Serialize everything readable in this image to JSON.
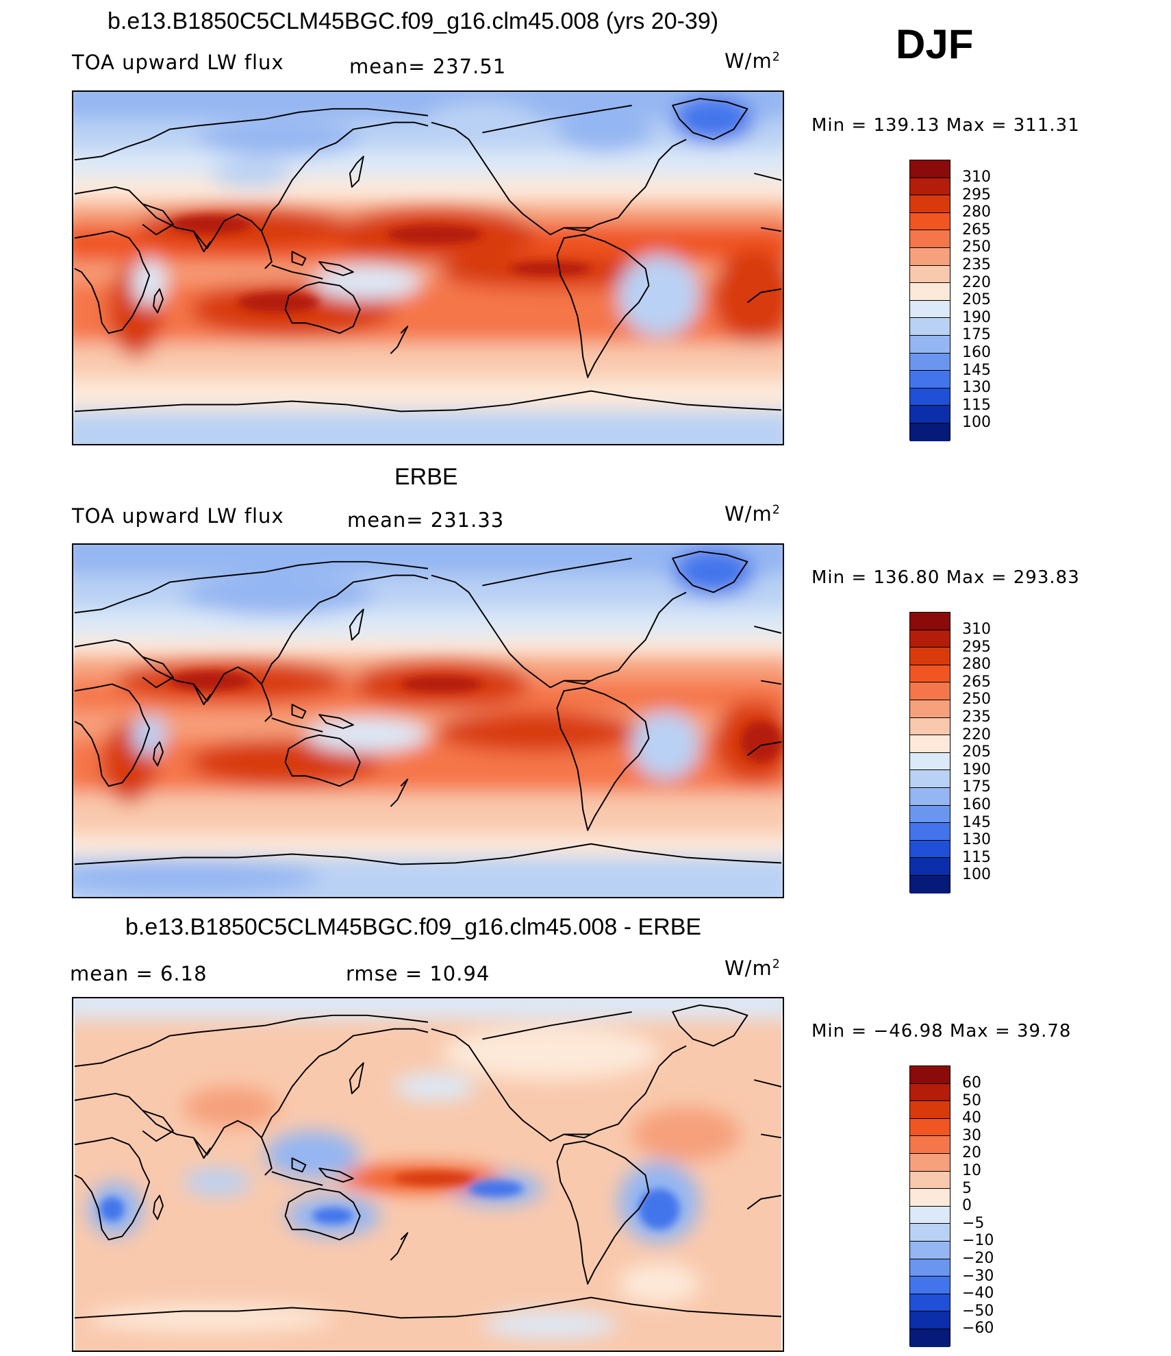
{
  "season": "DJF",
  "units": "W/m",
  "units_exp": "2",
  "panels": [
    {
      "title": "b.e13.B1850C5CLM45BGC.f09_g16.clm45.008 (yrs 20-39)",
      "left": "TOA upward LW flux",
      "center": "mean= 237.51",
      "minmax": "Min  =  139.13  Max  =  311.31",
      "scale": "flux"
    },
    {
      "title": "ERBE",
      "left": "TOA upward LW flux",
      "center": "mean= 231.33",
      "minmax": "Min  =  136.80  Max  =  293.83",
      "scale": "flux"
    },
    {
      "title": "b.e13.B1850C5CLM45BGC.f09_g16.clm45.008 - ERBE",
      "left": "mean =      6.18",
      "center": "rmse =     10.94",
      "minmax": "Min  =  −46.98  Max  =     39.78",
      "scale": "diff"
    }
  ],
  "colorbars": {
    "flux": {
      "labels": [
        "310",
        "295",
        "280",
        "265",
        "250",
        "235",
        "220",
        "205",
        "190",
        "175",
        "160",
        "145",
        "130",
        "115",
        "100"
      ],
      "colors": [
        "#8b0a0a",
        "#b41d0a",
        "#d83a0c",
        "#f05522",
        "#f5764a",
        "#f6a07c",
        "#f9c9ad",
        "#fde9d9",
        "#dce9f8",
        "#b9d1f4",
        "#94b6f2",
        "#6b96ef",
        "#4374ec",
        "#2050d8",
        "#0b2eaa",
        "#061a7a"
      ]
    },
    "diff": {
      "labels": [
        "60",
        "50",
        "40",
        "30",
        "20",
        "10",
        "5",
        "0",
        "−5",
        "−10",
        "−20",
        "−30",
        "−40",
        "−50",
        "−60"
      ],
      "colors": [
        "#8b0a0a",
        "#b41d0a",
        "#d83a0c",
        "#f05522",
        "#f5764a",
        "#f6a07c",
        "#f9c9ad",
        "#fde9d9",
        "#dce9f8",
        "#b9d1f4",
        "#94b6f2",
        "#6b96ef",
        "#4374ec",
        "#2050d8",
        "#0b2eaa",
        "#061a7a"
      ]
    }
  }
}
